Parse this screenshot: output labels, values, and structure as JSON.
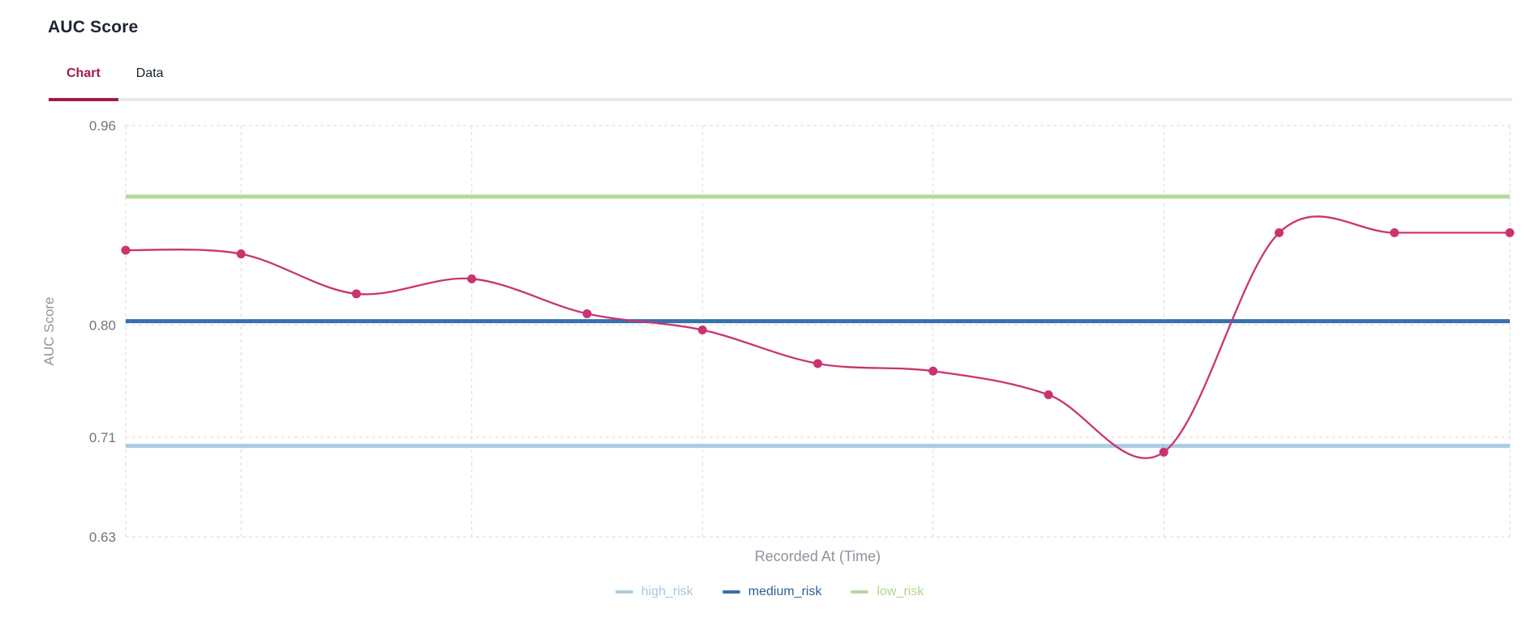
{
  "header": {
    "title": "AUC Score",
    "tabs": [
      {
        "label": "Chart",
        "active": true
      },
      {
        "label": "Data",
        "active": false
      }
    ]
  },
  "chart_data": {
    "type": "line",
    "title": "AUC Score",
    "xlabel": "Recorded At (Time)",
    "ylabel": "AUC Score",
    "ylim": [
      0.63,
      0.96
    ],
    "grid": "dashed, light gray; horizontal lines at y ticks, vertical lines at some time ticks",
    "legend_position": "bottom",
    "x_axis": {
      "type": "time",
      "tick_labels_visible": false,
      "num_points": 13
    },
    "y_ticks": [
      {
        "label": "0.96",
        "value": 0.96
      },
      {
        "label": "0.80",
        "value": 0.8
      },
      {
        "label": "0.71",
        "value": 0.71
      },
      {
        "label": "0.63",
        "value": 0.63
      }
    ],
    "x_gridline_point_indices": [
      0,
      1,
      3,
      5,
      7,
      9,
      12
    ],
    "series": [
      {
        "name": "auc_score",
        "color": "#ca3370",
        "style": "smooth line with round markers",
        "values": [
          0.86,
          0.857,
          0.825,
          0.837,
          0.809,
          0.796,
          0.769,
          0.763,
          0.744,
          0.698,
          0.874,
          0.874,
          0.874
        ]
      }
    ],
    "reference_lines": [
      {
        "name": "high_risk",
        "value": 0.703,
        "color": "#a9cce4",
        "label_color": "#a9c6e5"
      },
      {
        "name": "medium_risk",
        "value": 0.803,
        "color": "#3571ab",
        "label_color": "#2e5f99"
      },
      {
        "name": "low_risk",
        "value": 0.903,
        "color": "#b6da99",
        "label_color": "#afd58c"
      }
    ],
    "colors": {
      "gridline": "#d8dade",
      "tick_text": "#70757e",
      "axis_title_text": "#8e949e",
      "accent_tab": "#a21a52"
    }
  }
}
